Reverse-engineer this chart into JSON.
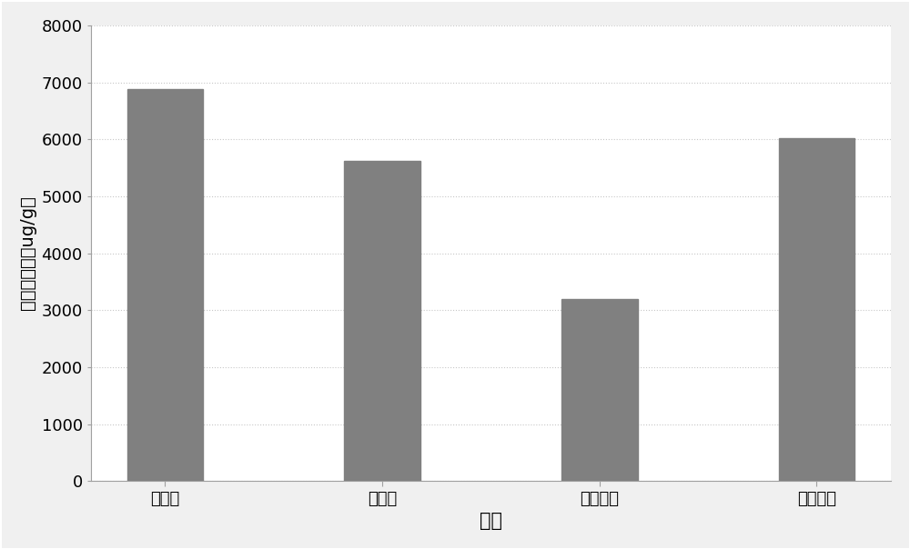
{
  "categories": [
    "蛋白胨",
    "牛肉膏",
    "胰蛋白胨",
    "酵母浸粉"
  ],
  "values": [
    6880,
    5620,
    3190,
    6020
  ],
  "bar_color": "#808080",
  "xlabel": "氮源",
  "ylabel": "有机硒含量（ug/g）",
  "ylim": [
    0,
    8000
  ],
  "yticks": [
    0,
    1000,
    2000,
    3000,
    4000,
    5000,
    6000,
    7000,
    8000
  ],
  "background_color": "#f0f0f0",
  "plot_bg_color": "#ffffff",
  "grid_color": "#c8c8c8",
  "border_color": "#a0a0a0",
  "xlabel_fontsize": 15,
  "ylabel_fontsize": 14,
  "tick_fontsize": 13,
  "bar_width": 0.35
}
